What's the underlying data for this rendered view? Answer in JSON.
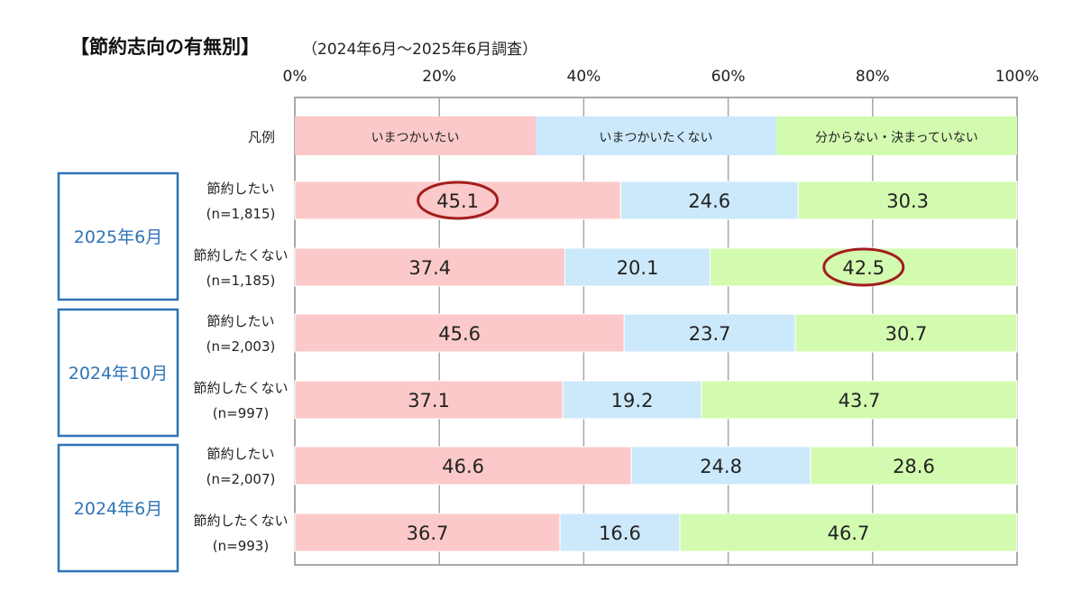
{
  "title": "【節約志向の有無別】",
  "subtitle": "（2024年6月～2025年6月調査）",
  "chart_data": {
    "type": "bar",
    "orientation": "horizontal",
    "stacked": true,
    "percent_scale": true,
    "xlim": [
      0,
      100
    ],
    "x_ticks": [
      "0%",
      "20%",
      "40%",
      "60%",
      "80%",
      "100%"
    ],
    "grid": true,
    "legend_row_label": "凡例",
    "series": [
      {
        "name": "いまつかいたい",
        "color": "#fbc9c9"
      },
      {
        "name": "いまつかいたくない",
        "color": "#cce9fb"
      },
      {
        "name": "分からない・決まっていない",
        "color": "#d3fbb0"
      }
    ],
    "groups": [
      {
        "label": "2025年6月",
        "rows": [
          {
            "label": "節約したい",
            "n": "(n=1,815)",
            "values": [
              45.1,
              24.6,
              30.3
            ],
            "highlight": 0
          },
          {
            "label": "節約したくない",
            "n": "(n=1,185)",
            "values": [
              37.4,
              20.1,
              42.5
            ],
            "highlight": 2
          }
        ]
      },
      {
        "label": "2024年10月",
        "rows": [
          {
            "label": "節約したい",
            "n": "(n=2,003)",
            "values": [
              45.6,
              23.7,
              30.7
            ]
          },
          {
            "label": "節約したくない",
            "n": "(n=997)",
            "values": [
              37.1,
              19.2,
              43.7
            ]
          }
        ]
      },
      {
        "label": "2024年6月",
        "rows": [
          {
            "label": "節約したい",
            "n": "(n=2,007)",
            "values": [
              46.6,
              24.8,
              28.6
            ]
          },
          {
            "label": "節約したくない",
            "n": "(n=993)",
            "values": [
              36.7,
              16.6,
              46.7
            ]
          }
        ]
      }
    ],
    "highlight_color": "#a31d1d",
    "group_box_color": "#2e74b5",
    "grid_color": "#a6a6a6",
    "frame_color": "#8c8c8c"
  }
}
